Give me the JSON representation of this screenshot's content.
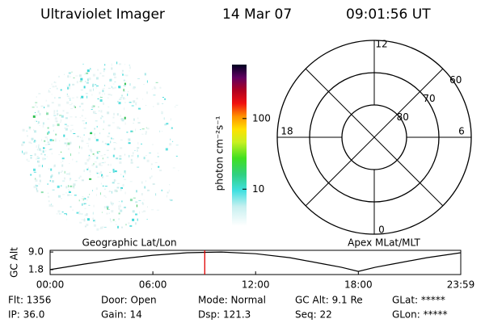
{
  "header": {
    "title": "Ultraviolet Imager",
    "date": "14 Mar 07",
    "time": "09:01:56 UT"
  },
  "colorbar": {
    "label": "photon cm⁻²s⁻¹",
    "scale": "log",
    "lim": [
      3,
      580
    ],
    "ticks": [
      10,
      100
    ]
  },
  "polar": {
    "mlt_ticks": [
      12,
      18,
      6,
      0
    ],
    "lat_lim": [
      60,
      90
    ],
    "lat_ticks": [
      60,
      70,
      80
    ]
  },
  "strip": {
    "type": "line",
    "ylabel": "GC Alt",
    "left_title": "Geographic Lat/Lon",
    "right_title": "Apex MLat/MLT",
    "xlim": [
      0,
      23.98
    ],
    "xticks": [
      {
        "value": 0,
        "label": "00:00"
      },
      {
        "value": 6,
        "label": "06:00"
      },
      {
        "value": 12,
        "label": "12:00"
      },
      {
        "value": 18,
        "label": "18:00"
      },
      {
        "value": 23.98,
        "label": "23:59"
      }
    ],
    "ylim": [
      -0.2,
      9.7
    ],
    "yticks": [
      {
        "value": 9.0,
        "label": "9.0"
      },
      {
        "value": 1.8,
        "label": "1.8"
      }
    ],
    "x": [
      0,
      2,
      4,
      6,
      8,
      10,
      12,
      14,
      16,
      17,
      18,
      19,
      20,
      22,
      23.98
    ],
    "values": [
      1.8,
      4.1,
      6.1,
      7.7,
      8.7,
      9.0,
      8.3,
      6.7,
      4.1,
      2.8,
      1.1,
      2.8,
      4.1,
      6.7,
      8.7
    ],
    "color": "#000000",
    "marker_x": 9.03,
    "marker_color": "#e00000"
  },
  "footer": {
    "rows": [
      [
        "Flt: 1356",
        "Door: Open",
        "Mode: Normal",
        "GC Alt: 9.1 Re",
        "GLat: *****"
      ],
      [
        "IP: 36.0",
        "Gain: 14",
        "Dsp: 121.3",
        "Seq: 22",
        "GLon: *****"
      ]
    ]
  }
}
